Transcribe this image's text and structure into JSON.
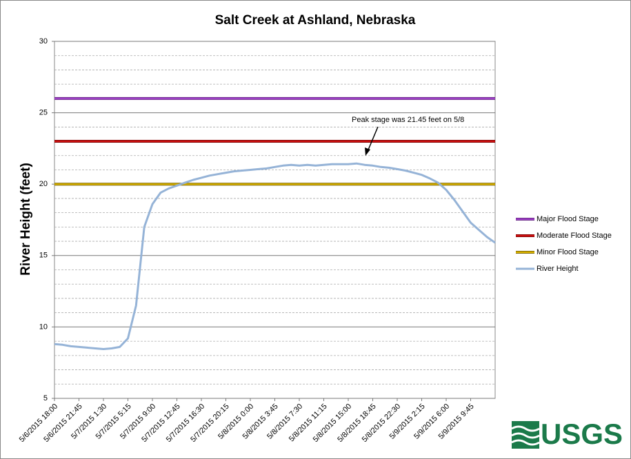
{
  "chart_data": {
    "type": "line",
    "title": "Salt Creek at Ashland, Nebraska",
    "y_label": "River Height (feet)",
    "ylim": [
      5,
      30
    ],
    "yticks": [
      5,
      10,
      15,
      20,
      25,
      30
    ],
    "yminor": [
      6,
      7,
      8,
      9,
      11,
      12,
      13,
      14,
      16,
      17,
      18,
      19,
      21,
      22,
      23,
      24,
      26,
      27,
      28,
      29
    ],
    "grid": true,
    "legend": "right",
    "categories": [
      "5/6/2015 18:00",
      null,
      null,
      "5/6/2015 21:45",
      null,
      null,
      "5/7/2015 1:30",
      null,
      null,
      "5/7/2015 5:15",
      null,
      null,
      "5/7/2015 9:00",
      null,
      null,
      "5/7/2015 12:45",
      null,
      null,
      "5/7/2015 16:30",
      null,
      null,
      "5/7/2015 20:15",
      null,
      null,
      "5/8/2015 0:00",
      null,
      null,
      "5/8/2015 3:45",
      null,
      null,
      "5/8/2015 7:30",
      null,
      null,
      "5/8/2015 11:15",
      null,
      null,
      "5/8/2015 15:00",
      null,
      null,
      "5/8/2015 18:45",
      null,
      null,
      "5/8/2015 22:30",
      null,
      null,
      "5/9/2015 2:15",
      null,
      null,
      "5/9/2015 6:00",
      null,
      null,
      "5/9/2015 9:45",
      null,
      null,
      null
    ],
    "reference_lines": [
      {
        "name": "Major Flood Stage",
        "color": "#a040c8",
        "edge": "#6a2a88",
        "value": 26
      },
      {
        "name": "Moderate Flood Stage",
        "color": "#d01010",
        "edge": "#800000",
        "value": 23
      },
      {
        "name": "Minor Flood Stage",
        "color": "#e0b800",
        "edge": "#7a6400",
        "value": 20
      }
    ],
    "series": [
      {
        "name": "River Height",
        "color": "#95b3d7",
        "values": [
          8.8,
          8.75,
          8.65,
          8.6,
          8.55,
          8.5,
          8.45,
          8.5,
          8.6,
          9.2,
          11.5,
          17.0,
          18.6,
          19.4,
          19.7,
          19.9,
          20.1,
          20.3,
          20.45,
          20.6,
          20.7,
          20.8,
          20.9,
          20.95,
          21.0,
          21.05,
          21.1,
          21.2,
          21.3,
          21.35,
          21.3,
          21.35,
          21.3,
          21.35,
          21.4,
          21.4,
          21.4,
          21.45,
          21.35,
          21.3,
          21.2,
          21.15,
          21.05,
          20.95,
          20.8,
          20.65,
          20.4,
          20.1,
          19.6,
          18.9,
          18.1,
          17.3,
          16.8,
          16.3,
          15.9
        ]
      }
    ],
    "annotation": "Peak stage was 21.45 feet on 5/8",
    "logo": "USGS"
  }
}
